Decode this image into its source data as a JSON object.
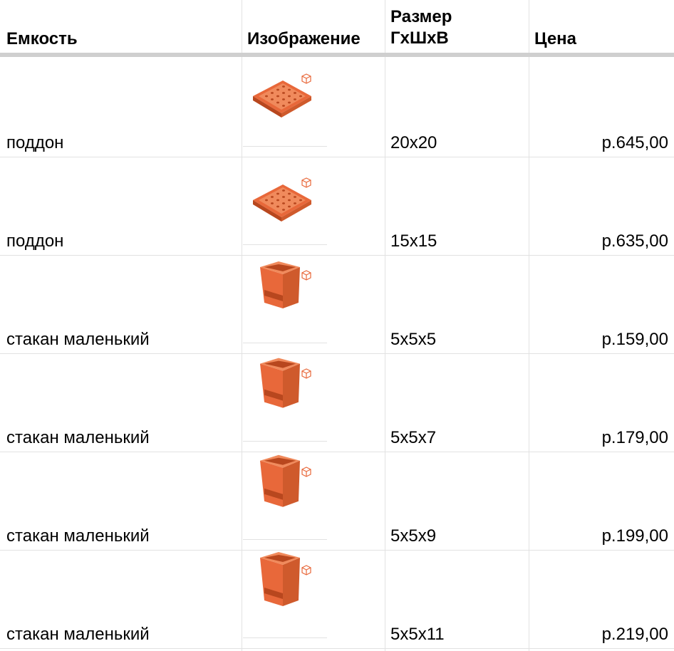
{
  "header": {
    "col_capacity": "Емкость",
    "col_image": "Изображение",
    "col_size_line1": "Размер",
    "col_size_line2": "ГхШхВ",
    "col_price": "Цена"
  },
  "colors": {
    "product_orange": "#e8683a",
    "product_dark": "#b8471e",
    "product_light": "#f08a5c",
    "grid_line": "#e2e2e2",
    "header_rule": "#cfcfcf"
  },
  "rows": [
    {
      "name": "поддон",
      "size": "20x20",
      "price": "р.645,00",
      "icon": "tray-icon",
      "model": "tray"
    },
    {
      "name": "поддон",
      "size": "15x15",
      "price": "р.635,00",
      "icon": "tray-icon",
      "model": "tray"
    },
    {
      "name": "стакан маленький",
      "size": "5x5x5",
      "price": "р.159,00",
      "icon": "cup-icon",
      "model": "cup"
    },
    {
      "name": "стакан маленький",
      "size": "5x5x7",
      "price": "р.179,00",
      "icon": "cup-icon",
      "model": "cup"
    },
    {
      "name": "стакан маленький",
      "size": "5x5x9",
      "price": "р.199,00",
      "icon": "cup-icon",
      "model": "cup"
    },
    {
      "name": "стакан маленький",
      "size": "5x5x11",
      "price": "р.219,00",
      "icon": "cup-icon",
      "model": "cup"
    }
  ]
}
